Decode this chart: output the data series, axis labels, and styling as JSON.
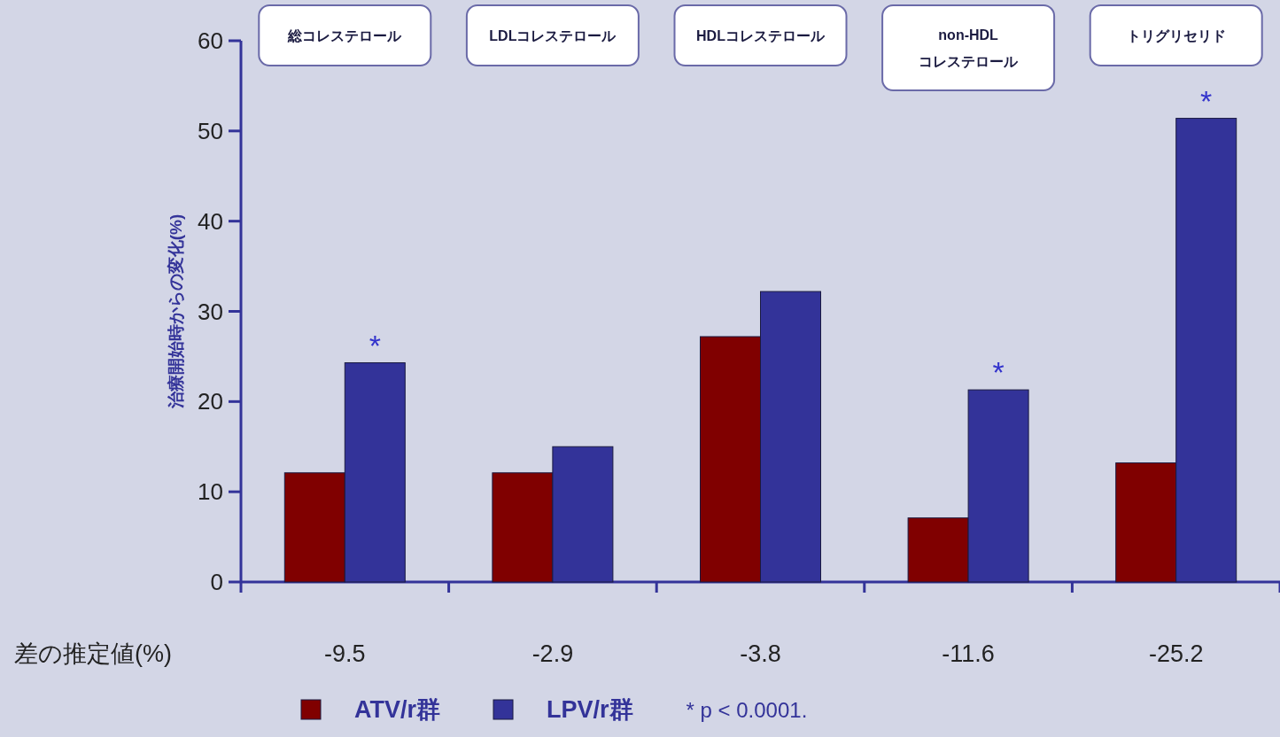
{
  "chart_data": {
    "type": "bar",
    "ylabel": "治療開始時からの変化(%)",
    "categories": [
      "総コレステロール",
      "LDLコレステロール",
      "HDLコレステロール",
      "non-HDL\nコレステロール",
      "トリグリセリド"
    ],
    "series": [
      {
        "name": "ATV/r群",
        "color": "#800000",
        "values": [
          12.1,
          12.1,
          27.2,
          7.1,
          13.2
        ]
      },
      {
        "name": "LPV/r群",
        "color": "#333399",
        "values": [
          24.3,
          15.0,
          32.2,
          21.3,
          51.4
        ]
      }
    ],
    "ylim": [
      0,
      60
    ],
    "yticks": [
      0,
      10,
      20,
      30,
      40,
      50,
      60
    ],
    "legend": "bottom",
    "annotations": [
      "差の推定値(%)",
      "-9.5",
      "-2.9",
      "-3.8",
      "-11.6",
      "-25.2",
      "* p < 0.0001.",
      {
        "text": "*",
        "x": "総コレステロール",
        "y": 24.3
      },
      {
        "text": "*",
        "x": "non-HDL\nコレステロール",
        "y": 21.3
      },
      {
        "text": "*",
        "x": "トリグリセリド",
        "y": 51.4
      }
    ]
  }
}
